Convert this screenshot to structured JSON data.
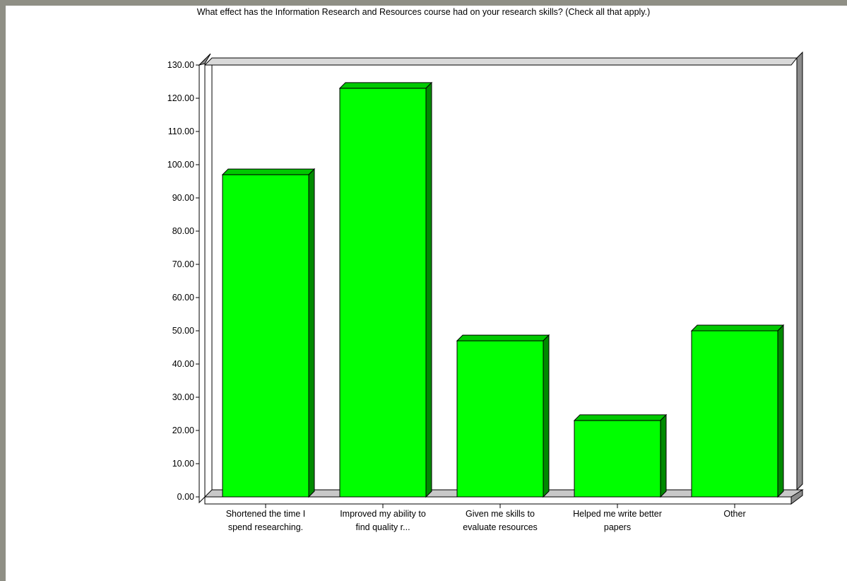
{
  "chart_data": {
    "type": "bar",
    "title": "What effect has the Information Research and Resources course had on your research skills? (Check all that apply.)",
    "categories": [
      [
        "Shortened the time I",
        "spend researching."
      ],
      [
        "Improved my ability to",
        "find quality r..."
      ],
      [
        "Given me skills to",
        "evaluate resources"
      ],
      [
        "Helped me write better",
        "papers"
      ],
      [
        "Other"
      ]
    ],
    "values": [
      97,
      123,
      47,
      23,
      50
    ],
    "ylim": [
      0,
      130
    ],
    "ytick_step": 10,
    "ytick_labels": [
      "0.00",
      "10.00",
      "20.00",
      "30.00",
      "40.00",
      "50.00",
      "60.00",
      "70.00",
      "80.00",
      "90.00",
      "100.00",
      "110.00",
      "120.00",
      "130.00"
    ],
    "colors": {
      "bar_front": "#00ff00",
      "bar_top": "#00c800",
      "bar_side": "#008a00",
      "wall_side": "#8c8c8c",
      "floor": "#c8c8c8",
      "frame_border": "#8f8f85"
    }
  }
}
